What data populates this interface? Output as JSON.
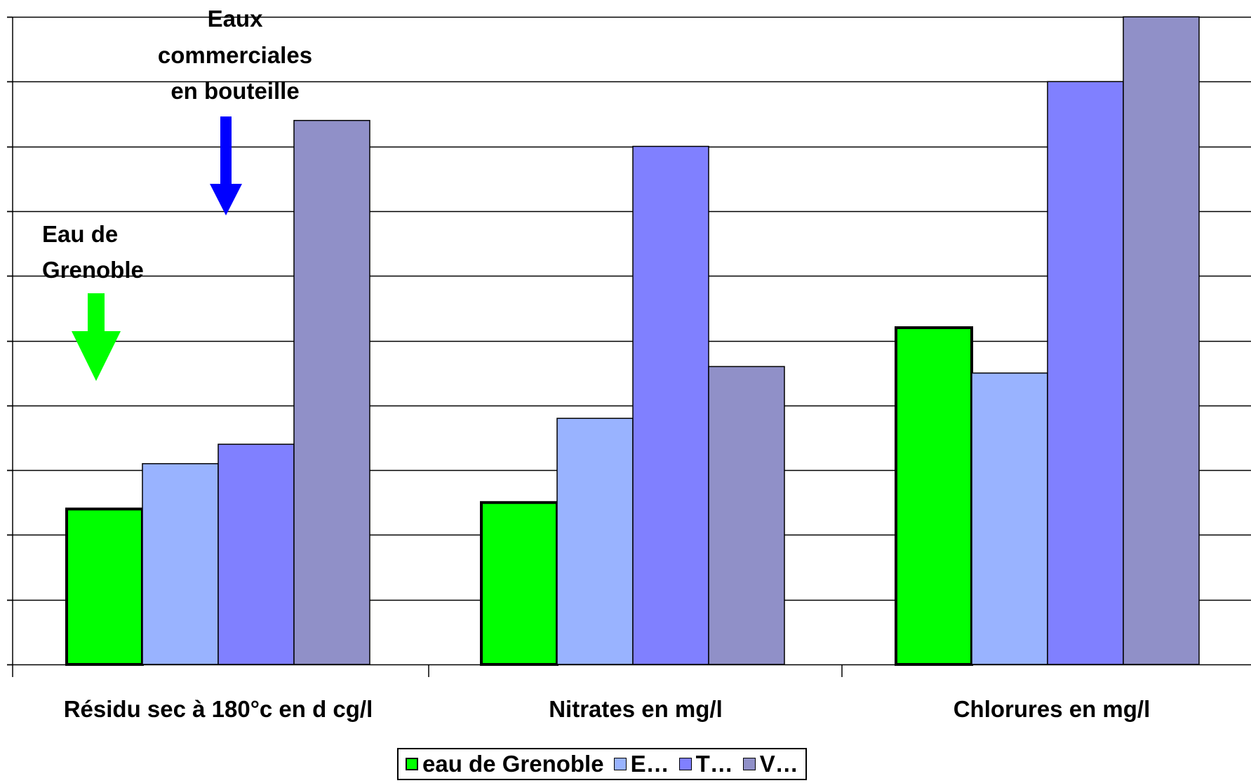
{
  "chart_data": {
    "type": "bar",
    "title": "",
    "xlabel": "",
    "ylabel": "",
    "categories": [
      "Résidu sec à 180°c en d cg/l",
      "Nitrates en mg/l",
      "Chlorures en mg/l"
    ],
    "ylim": [
      0,
      10
    ],
    "y_gridlines": 10,
    "y_tick_labels_shown": false,
    "grid": true,
    "legend_position": "bottom",
    "series": [
      {
        "name": "eau de Grenoble",
        "values": [
          2.4,
          2.5,
          5.2
        ],
        "color": "#00ff00",
        "outline": "#000000"
      },
      {
        "name": "E…",
        "values": [
          3.1,
          3.8,
          4.5
        ],
        "color": "#99b3ff",
        "outline": "#000000"
      },
      {
        "name": "T…",
        "values": [
          3.4,
          8.0,
          9.0
        ],
        "color": "#8080ff",
        "outline": "#000000"
      },
      {
        "name": "V…",
        "values": [
          8.4,
          4.6,
          10.0
        ],
        "color": "#9090c8",
        "outline": "#000000"
      }
    ],
    "annotations": [
      {
        "id": "bottled",
        "lines": [
          "Eaux",
          "commerciales",
          "en bouteille"
        ],
        "arrow_color": "#0000ff"
      },
      {
        "id": "grenoble",
        "lines": [
          "Eau de",
          "Grenoble"
        ],
        "arrow_color": "#00ff00"
      }
    ]
  }
}
